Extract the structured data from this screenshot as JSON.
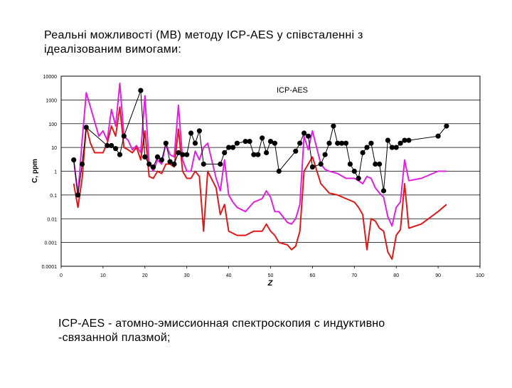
{
  "slide": {
    "title_line1": "Реальні можливості (МВ) методу ICP-AES у співсталенні з",
    "title_line2": "ідеалізованим вимогами:",
    "caption_line1": "ICP-AES - атомно-эмиссионная спектроскопия с индуктивно",
    "caption_line2": "-связанной плазмой;"
  },
  "chart_data": {
    "type": "line",
    "title": "ICP-AES",
    "xlabel": "Z",
    "ylabel": "C, ppm",
    "xlim": [
      0,
      100
    ],
    "ylim": [
      0.0001,
      10000
    ],
    "yscale": "log",
    "x_ticks": [
      0,
      10,
      20,
      30,
      40,
      50,
      60,
      70,
      80,
      90,
      100
    ],
    "y_ticks": [
      0.0001,
      0.001,
      0.01,
      0.1,
      1,
      10,
      100,
      1000,
      10000
    ],
    "y_tick_labels": [
      "0.0001",
      "0.001",
      "0.01",
      "0.1",
      "1",
      "10",
      "100",
      "1000",
      "10000"
    ],
    "grid": "horizontal",
    "colors": {
      "magenta": "#e020e0",
      "red": "#dd1a1a",
      "markers": "#000000"
    },
    "series": [
      {
        "style": "magenta",
        "x": [
          3,
          4,
          5,
          6,
          7,
          9,
          10,
          11,
          12,
          13,
          14,
          15,
          16,
          17,
          18,
          19,
          20,
          21,
          22,
          23,
          24,
          25,
          26,
          27,
          28,
          29,
          30,
          31,
          32,
          33,
          34,
          35,
          37,
          38,
          39,
          40,
          41,
          42,
          44,
          46,
          48,
          49,
          50,
          51,
          52,
          54,
          55,
          56,
          57,
          58,
          59,
          60,
          62,
          63,
          64,
          66,
          68,
          70,
          71,
          72,
          73,
          74,
          75,
          76,
          77,
          78,
          79,
          80,
          81,
          82,
          83,
          86,
          90,
          92
        ],
        "y": [
          3,
          0.1,
          20,
          2000,
          500,
          30,
          50,
          20,
          400,
          80,
          5000,
          30,
          20,
          8,
          12,
          6,
          1500,
          2,
          1,
          3,
          2,
          15,
          5,
          4,
          600,
          3,
          1,
          1,
          7,
          3,
          10,
          15,
          0.5,
          0.15,
          3,
          0.1,
          0.05,
          0.03,
          0.02,
          0.05,
          0.07,
          0.15,
          0.08,
          0.02,
          0.02,
          0.007,
          0.006,
          0.01,
          0.04,
          30,
          8,
          50,
          2,
          1.2,
          1,
          0.8,
          0.5,
          0.5,
          0.4,
          0.3,
          0.6,
          0.5,
          0.2,
          0.12,
          0.08,
          0.012,
          0.005,
          0.03,
          0.05,
          3,
          0.4,
          0.5,
          1,
          1
        ]
      },
      {
        "style": "red",
        "x": [
          3,
          4,
          5,
          6,
          7,
          8,
          10,
          11,
          12,
          13,
          14,
          15,
          16,
          17,
          18,
          19,
          20,
          21,
          22,
          23,
          24,
          25,
          26,
          27,
          28,
          29,
          30,
          31,
          32,
          33,
          34,
          35,
          37,
          38,
          39,
          40,
          42,
          44,
          46,
          48,
          49,
          50,
          51,
          52,
          54,
          55,
          56,
          57,
          58,
          59,
          60,
          62,
          64,
          66,
          68,
          70,
          71,
          72,
          73,
          74,
          75,
          76,
          77,
          78,
          79,
          80,
          81,
          82,
          83,
          86,
          90,
          92
        ],
        "y": [
          0.3,
          0.03,
          0.5,
          80,
          15,
          6,
          6,
          15,
          80,
          30,
          500,
          10,
          8,
          6,
          10,
          3,
          50,
          0.6,
          0.5,
          1,
          0.8,
          2,
          2,
          1.5,
          60,
          1,
          0.5,
          0.5,
          1,
          0.6,
          0.003,
          1,
          0.2,
          0.015,
          0.04,
          0.003,
          0.002,
          0.002,
          0.003,
          0.003,
          0.006,
          0.003,
          0.002,
          0.001,
          0.0008,
          0.0005,
          0.0007,
          0.003,
          1,
          2,
          4,
          0.3,
          0.12,
          0.1,
          0.07,
          0.05,
          0.03,
          0.015,
          0.0005,
          0.01,
          0.008,
          0.004,
          0.003,
          0.0004,
          0.0002,
          0.002,
          0.0035,
          0.3,
          0.004,
          0.006,
          0.02,
          0.04
        ]
      },
      {
        "style": "markers",
        "x": [
          3,
          4,
          5,
          6,
          11,
          12,
          13,
          14,
          15,
          19,
          20,
          21,
          22,
          23,
          24,
          25,
          26,
          27,
          28,
          29,
          30,
          31,
          32,
          33,
          34,
          38,
          39,
          40,
          41,
          42,
          44,
          45,
          46,
          47,
          48,
          49,
          50,
          51,
          52,
          56,
          57,
          58,
          59,
          60,
          62,
          63,
          64,
          65,
          66,
          67,
          68,
          69,
          70,
          71,
          72,
          73,
          74,
          75,
          76,
          77,
          78,
          79,
          80,
          81,
          82,
          83,
          90,
          92
        ],
        "y": [
          3,
          0.1,
          2,
          70,
          12,
          12,
          9,
          5,
          30,
          2500,
          4,
          2,
          1.5,
          4,
          3,
          15,
          2.5,
          2,
          6,
          5,
          5,
          40,
          15,
          50,
          2,
          2,
          6,
          10,
          10,
          15,
          18,
          18,
          5,
          5,
          25,
          6,
          18,
          15,
          1,
          7,
          15,
          40,
          30,
          1.5,
          2,
          5,
          15,
          80,
          15,
          15,
          15,
          2,
          1,
          0.5,
          6,
          10,
          15,
          2,
          2,
          0.15,
          20,
          10,
          10,
          15,
          20,
          20,
          30,
          80
        ]
      }
    ]
  }
}
